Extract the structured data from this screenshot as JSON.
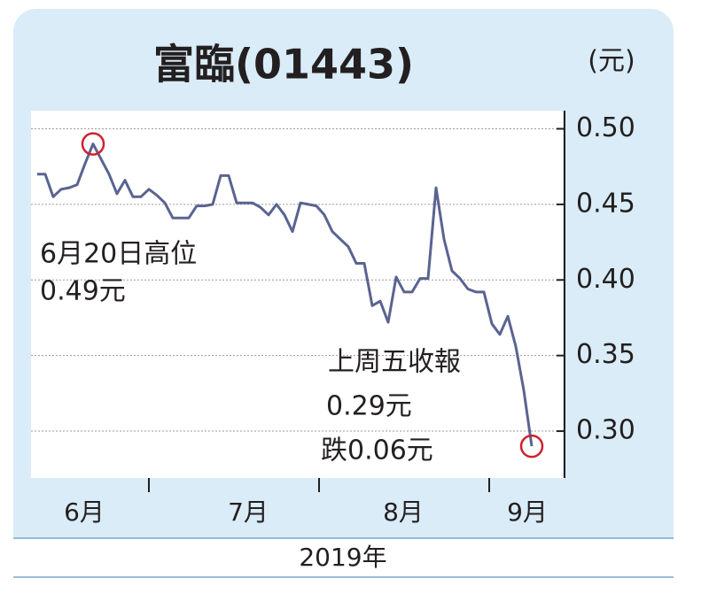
{
  "chart_data": {
    "type": "line",
    "title": "富臨(01443)",
    "unit": "(元)",
    "x_labels": [
      "6月",
      "7月",
      "8月",
      "9月"
    ],
    "x_axis_label": "2019年",
    "series": [
      {
        "name": null,
        "color": "#5a6391",
        "values": [
          0.47,
          0.47,
          0.455,
          0.46,
          0.461,
          0.463,
          0.477,
          0.49,
          0.48,
          0.47,
          0.457,
          0.466,
          0.455,
          0.455,
          0.46,
          0.456,
          0.451,
          0.441,
          0.441,
          0.441,
          0.449,
          0.449,
          0.45,
          0.469,
          0.469,
          0.451,
          0.451,
          0.451,
          0.448,
          0.443,
          0.45,
          0.443,
          0.432,
          0.451,
          0.45,
          0.449,
          0.443,
          0.432,
          0.427,
          0.422,
          0.411,
          0.411,
          0.383,
          0.386,
          0.372,
          0.402,
          0.392,
          0.392,
          0.401,
          0.401,
          0.461,
          0.427,
          0.406,
          0.401,
          0.394,
          0.392,
          0.392,
          0.371,
          0.364,
          0.376,
          0.356,
          0.327,
          0.29
        ]
      }
    ],
    "marker_color": "#d0202e",
    "ylim": [
      0.269,
      0.512
    ],
    "yticks": [
      {
        "value": 0.5,
        "label": "0.50"
      },
      0.45,
      {
        "value": 0.4,
        "label": "0.40"
      },
      0.35,
      {
        "value": 0.3,
        "label": "0.30"
      }
    ],
    "grid": true,
    "annotations": [
      {
        "lines": [
          "6月20日高位",
          "0.49元"
        ]
      },
      {
        "lines": [
          "上周五收報",
          "0.29元",
          "跌0.06元"
        ]
      }
    ]
  }
}
